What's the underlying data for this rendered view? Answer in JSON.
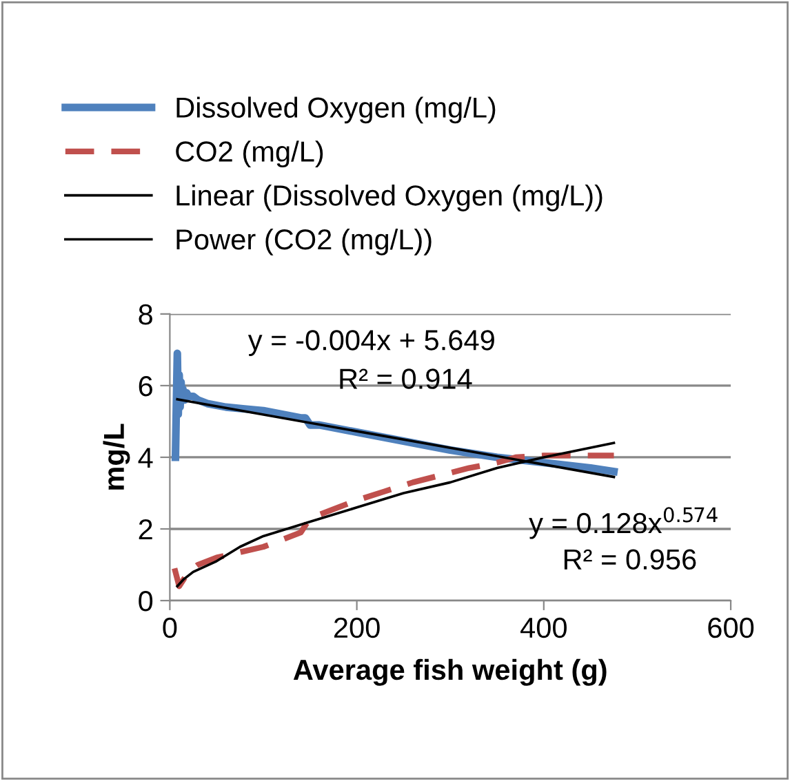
{
  "chart_data": {
    "type": "line",
    "xlabel": "Average fish weight (g)",
    "ylabel": "mg/L",
    "xlim": [
      0,
      600
    ],
    "xticks": [
      0,
      200,
      400,
      600
    ],
    "ylim": [
      0,
      8
    ],
    "yticks": [
      0,
      2,
      4,
      6,
      8
    ],
    "grid": "y",
    "legend": "top",
    "marker": "none",
    "series": [
      {
        "name": "Dissolved Oxygen (mg/L)",
        "color": "#4f81bd",
        "line_style": "solid",
        "x": [
          6,
          7,
          8,
          9,
          10,
          11,
          12,
          13,
          14,
          16,
          18,
          20,
          25,
          30,
          40,
          60,
          80,
          100,
          120,
          140,
          145,
          150,
          160,
          200,
          250,
          300,
          350,
          400,
          450,
          475
        ],
        "values": [
          4.0,
          5.5,
          6.9,
          5.2,
          6.3,
          5.4,
          6.1,
          5.6,
          5.9,
          5.6,
          5.8,
          5.7,
          5.7,
          5.6,
          5.5,
          5.4,
          5.35,
          5.3,
          5.2,
          5.1,
          5.1,
          4.9,
          4.9,
          4.7,
          4.45,
          4.2,
          4.0,
          3.85,
          3.7,
          3.6
        ]
      },
      {
        "name": "CO2 (mg/L)",
        "color": "#c0504d",
        "line_style": "dashed",
        "x": [
          5,
          10,
          20,
          30,
          50,
          75,
          100,
          120,
          140,
          150,
          175,
          200,
          230,
          260,
          290,
          320,
          350,
          370,
          400,
          430,
          475
        ],
        "values": [
          0.9,
          0.4,
          0.8,
          1.0,
          1.2,
          1.35,
          1.5,
          1.7,
          1.9,
          2.3,
          2.55,
          2.8,
          3.05,
          3.3,
          3.5,
          3.7,
          3.85,
          4.0,
          4.05,
          4.05,
          4.05
        ]
      },
      {
        "name": "Linear (Dissolved Oxygen (mg/L))",
        "color": "#000000",
        "line_style": "solid",
        "x": [
          8,
          475
        ],
        "values": [
          5.62,
          3.45
        ]
      },
      {
        "name": "Power (CO2 (mg/L))",
        "color": "#000000",
        "line_style": "solid",
        "x": [
          8,
          15,
          25,
          50,
          75,
          100,
          150,
          200,
          250,
          300,
          350,
          400,
          475
        ],
        "values": [
          0.4,
          0.6,
          0.8,
          1.1,
          1.5,
          1.8,
          2.2,
          2.6,
          3.0,
          3.3,
          3.7,
          4.0,
          4.4
        ]
      }
    ],
    "annotations": [
      "y = -0.004x + 5.649",
      "R² = 0.914",
      "y = 0.128x$^{0.574}$",
      "R² = 0.956"
    ]
  }
}
